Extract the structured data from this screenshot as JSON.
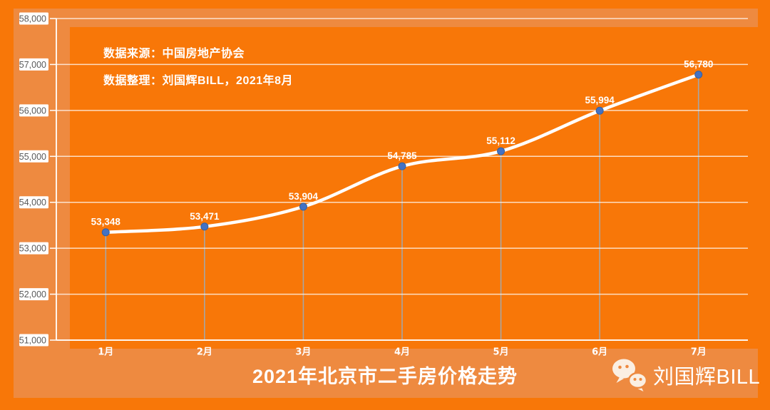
{
  "slide": {
    "annotations": {
      "source": "数据来源：中国房地产协会",
      "prepared_by": "数据整理：刘国辉BILL，2021年8月"
    },
    "brand": {
      "icon": "wechat-icon",
      "name": "刘国辉BILL"
    }
  },
  "chart_data": {
    "type": "line",
    "title": "2021年北京市二手房价格走势",
    "categories": [
      "1月",
      "2月",
      "3月",
      "4月",
      "5月",
      "6月",
      "7月"
    ],
    "values": [
      53348,
      53471,
      53904,
      54785,
      55112,
      55994,
      56780
    ],
    "data_labels": [
      "53,348",
      "53,471",
      "53,904",
      "54,785",
      "55,112",
      "55,994",
      "56,780"
    ],
    "ylim": [
      51000,
      58000
    ],
    "ytick_interval": 1000,
    "ytick_labels": [
      "58,000",
      "57,000",
      "56,000",
      "55,000",
      "54,000",
      "53,000",
      "52,000",
      "51,000"
    ],
    "grid": true,
    "legend": "none",
    "xlabel": "",
    "ylabel": ""
  },
  "colors": {
    "background_orange": "#F87708",
    "panel_orange": "#EE8A40",
    "line_white": "#FFFFFF",
    "marker_blue": "#4472C4",
    "marker_edge_blue": "#35619F",
    "dropline_gray": "#A6A6A6",
    "gridline_white": "rgba(255,255,255,0.75)",
    "ytick_text_gray": "#595959",
    "ytick_box_white": "#FFFFFF",
    "wechat_icon_cream": "#FBEFE2"
  }
}
